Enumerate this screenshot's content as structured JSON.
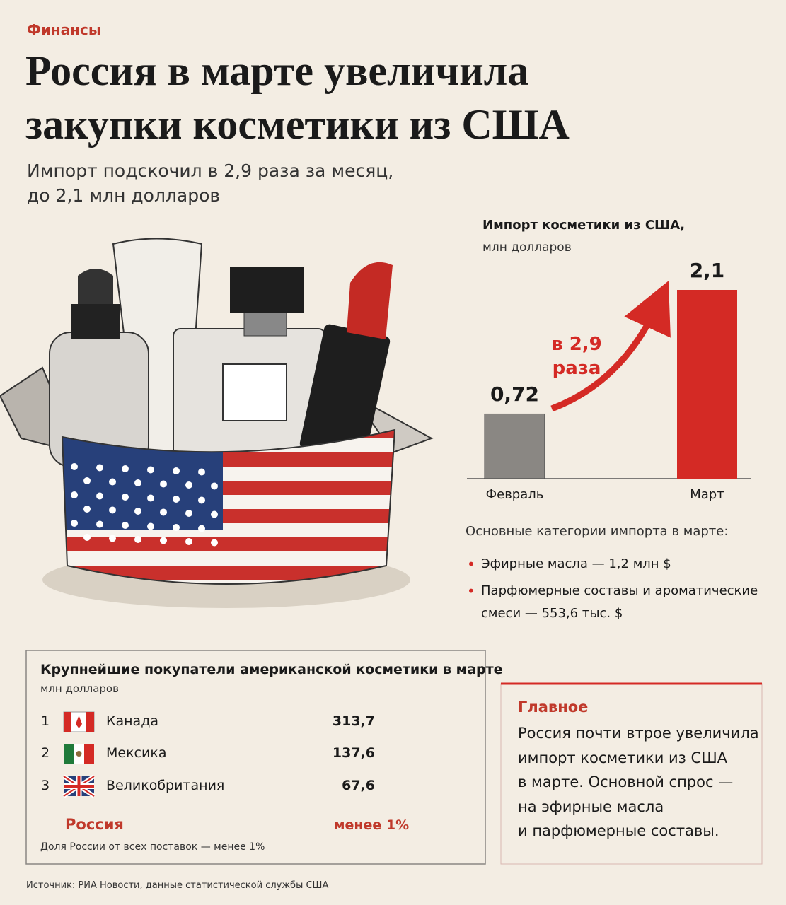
{
  "header": {
    "section": "Финансы",
    "title": "Россия в марте увеличила закупки косметики из США",
    "subtitle": "Импорт подскочил в 2,9 раза за месяц, до 2,1 млн долларов"
  },
  "chart_data": {
    "type": "bar",
    "title": "Импорт косметики из США,",
    "subtitle": "млн долларов",
    "categories": [
      "Февраль",
      "Март"
    ],
    "values": [
      0.72,
      2.1
    ],
    "value_labels": [
      "0,72",
      "2,1"
    ],
    "colors": [
      "#8a8783",
      "#d42a25"
    ],
    "annotation": "в 2,9 раза"
  },
  "import_categories": {
    "title": "Основные категории импорта в марте:",
    "items": [
      "Эфирные масла — 1,2 млн $",
      "Парфюмерные составы и ароматические смеси — 553,6 тыс. $"
    ]
  },
  "table": {
    "title": "Крупнейшие покупатели американской косметики в марте",
    "unit": "млн долларов",
    "rows": [
      [
        "1",
        "Канада",
        "313,7"
      ],
      [
        "2",
        "Мексика",
        "137,6"
      ],
      [
        "3",
        "Великобритания",
        "67,6"
      ]
    ],
    "russia": [
      "Россия",
      "менее 1%"
    ],
    "note": "Доля России от всех поставок — менее 1%"
  },
  "main": {
    "title": "Главное",
    "lines": [
      "Россия почти втрое увеличила",
      "импорт косметики из США",
      "в марте. Основной спрос —",
      "на эфирные масла",
      "и парфюмерные составы."
    ]
  },
  "source": "Источник: РИА Новости, данные статистической службы США"
}
